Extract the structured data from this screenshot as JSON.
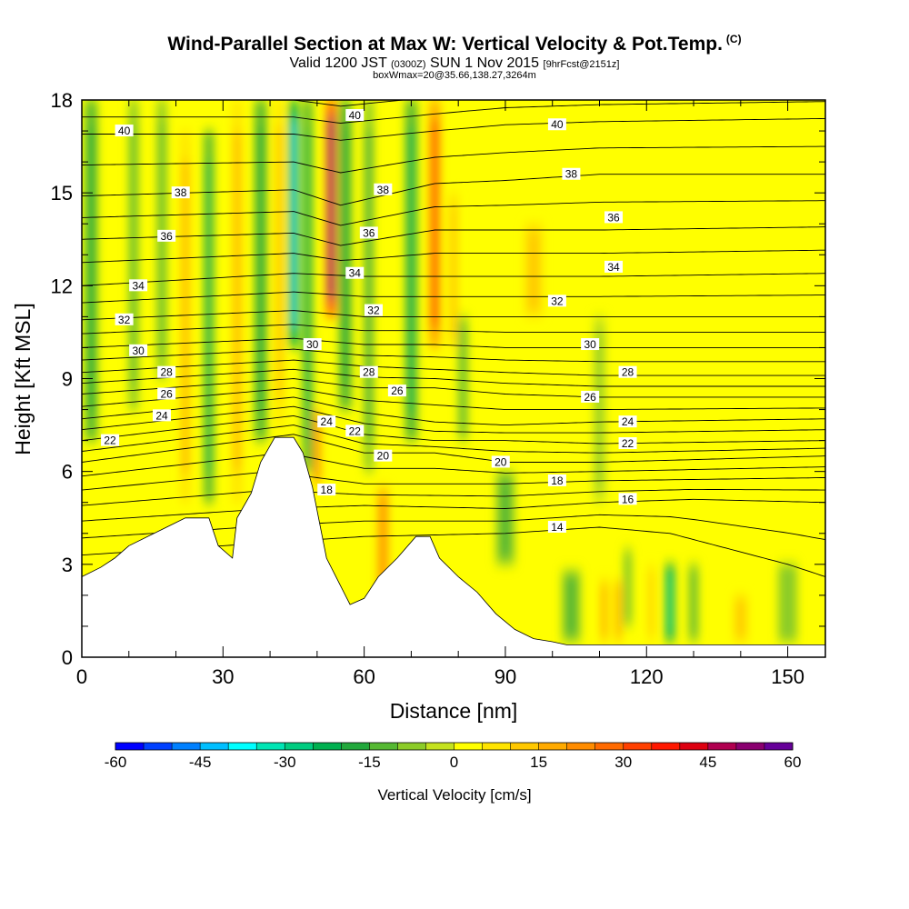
{
  "title": "Wind-Parallel Section at Max W: Vertical Velocity & Pot.Temp.",
  "title_mark": "(C)",
  "subtitle": {
    "valid": "Valid 1200 JST",
    "utc": "(0300Z)",
    "date": "SUN 1 Nov 2015",
    "forecast": "[9hrFcst@2151z]"
  },
  "info": "boxWmax=20@35.66,138.27,3264m",
  "chart_data": {
    "type": "heatmap",
    "xlabel": "Distance [nm]",
    "ylabel": "Height [Kft MSL]",
    "xlim": [
      0,
      158
    ],
    "ylim": [
      0,
      18
    ],
    "x_ticks": [
      0,
      30,
      60,
      90,
      120,
      150
    ],
    "y_ticks": [
      0,
      3,
      6,
      9,
      12,
      15,
      18
    ],
    "colorbar": {
      "label": "Vertical Velocity [cm/s]",
      "range": [
        -60,
        60
      ],
      "ticks": [
        -60,
        -45,
        -30,
        -15,
        0,
        15,
        30,
        45,
        60
      ],
      "colors": [
        "#0000ff",
        "#0040ff",
        "#0080ff",
        "#00bfff",
        "#00ffff",
        "#00e5b4",
        "#00cc80",
        "#00b050",
        "#22a83c",
        "#55b832",
        "#8ccc28",
        "#c4e21e",
        "#ffff00",
        "#ffe400",
        "#ffc800",
        "#ffaa00",
        "#ff8c00",
        "#ff6a00",
        "#ff4000",
        "#ff1800",
        "#dd0010",
        "#b00050",
        "#8a0070",
        "#660099"
      ]
    },
    "terrain_profile": [
      [
        0,
        2.6
      ],
      [
        4,
        2.9
      ],
      [
        7,
        3.2
      ],
      [
        10,
        3.6
      ],
      [
        18,
        4.2
      ],
      [
        22,
        4.5
      ],
      [
        27,
        4.5
      ],
      [
        29,
        3.6
      ],
      [
        32,
        3.2
      ],
      [
        33,
        4.5
      ],
      [
        36,
        5.3
      ],
      [
        38,
        6.3
      ],
      [
        41,
        7.1
      ],
      [
        45,
        7.1
      ],
      [
        47,
        6.6
      ],
      [
        49,
        5.5
      ],
      [
        52,
        3.2
      ],
      [
        57,
        1.7
      ],
      [
        60,
        1.9
      ],
      [
        63,
        2.6
      ],
      [
        67,
        3.2
      ],
      [
        71,
        3.9
      ],
      [
        74,
        3.9
      ],
      [
        76,
        3.2
      ],
      [
        80,
        2.6
      ],
      [
        84,
        2.1
      ],
      [
        88,
        1.4
      ],
      [
        92,
        0.9
      ],
      [
        96,
        0.6
      ],
      [
        100,
        0.5
      ],
      [
        103,
        0.4
      ],
      [
        158,
        0.4
      ]
    ],
    "theta_contours": [
      {
        "value": 14,
        "height": [
          [
            0,
            3.3
          ],
          [
            40,
            3.7
          ],
          [
            60,
            3.9
          ],
          [
            90,
            4.0
          ],
          [
            110,
            4.2
          ],
          [
            125,
            4.0
          ],
          [
            150,
            3.0
          ],
          [
            158,
            2.6
          ]
        ]
      },
      {
        "value": 16,
        "height": [
          [
            0,
            4.4
          ],
          [
            40,
            4.8
          ],
          [
            60,
            4.9
          ],
          [
            90,
            4.8
          ],
          [
            110,
            5.0
          ],
          [
            130,
            5.1
          ],
          [
            158,
            5.0
          ]
        ]
      },
      {
        "value": 18,
        "height": [
          [
            0,
            5.4
          ],
          [
            40,
            6.0
          ],
          [
            60,
            5.6
          ],
          [
            90,
            5.6
          ],
          [
            110,
            5.7
          ],
          [
            158,
            5.8
          ]
        ]
      },
      {
        "value": 20,
        "height": [
          [
            0,
            6.3
          ],
          [
            45,
            7.2
          ],
          [
            60,
            6.6
          ],
          [
            75,
            6.6
          ],
          [
            90,
            6.3
          ],
          [
            110,
            6.3
          ],
          [
            158,
            6.5
          ]
        ]
      },
      {
        "value": 22,
        "height": [
          [
            0,
            7.0
          ],
          [
            45,
            7.8
          ],
          [
            60,
            7.2
          ],
          [
            75,
            7.0
          ],
          [
            90,
            7.0
          ],
          [
            110,
            6.9
          ],
          [
            158,
            7.0
          ]
        ]
      },
      {
        "value": 24,
        "height": [
          [
            0,
            7.7
          ],
          [
            45,
            8.4
          ],
          [
            60,
            7.9
          ],
          [
            75,
            7.6
          ],
          [
            90,
            7.5
          ],
          [
            110,
            7.6
          ],
          [
            158,
            7.7
          ]
        ]
      },
      {
        "value": 26,
        "height": [
          [
            0,
            8.5
          ],
          [
            45,
            9.0
          ],
          [
            60,
            8.7
          ],
          [
            75,
            8.7
          ],
          [
            90,
            8.5
          ],
          [
            110,
            8.4
          ],
          [
            158,
            8.4
          ]
        ]
      },
      {
        "value": 28,
        "height": [
          [
            0,
            9.2
          ],
          [
            45,
            9.6
          ],
          [
            60,
            9.4
          ],
          [
            75,
            9.3
          ],
          [
            90,
            9.2
          ],
          [
            110,
            9.1
          ],
          [
            158,
            9.1
          ]
        ]
      },
      {
        "value": 30,
        "height": [
          [
            0,
            10.0
          ],
          [
            45,
            10.3
          ],
          [
            60,
            10.1
          ],
          [
            75,
            10.1
          ],
          [
            90,
            10.0
          ],
          [
            110,
            10.0
          ],
          [
            158,
            10.0
          ]
        ]
      },
      {
        "value": 32,
        "height": [
          [
            0,
            10.9
          ],
          [
            45,
            11.2
          ],
          [
            60,
            11.0
          ],
          [
            75,
            11.0
          ],
          [
            90,
            11.0
          ],
          [
            110,
            11.0
          ],
          [
            158,
            11.0
          ]
        ]
      },
      {
        "value": 34,
        "height": [
          [
            0,
            12.0
          ],
          [
            45,
            12.4
          ],
          [
            60,
            12.3
          ],
          [
            75,
            12.3
          ],
          [
            90,
            12.3
          ],
          [
            110,
            12.3
          ],
          [
            158,
            12.4
          ]
        ]
      },
      {
        "value": 36,
        "height": [
          [
            0,
            13.5
          ],
          [
            45,
            13.7
          ],
          [
            55,
            13.3
          ],
          [
            75,
            13.8
          ],
          [
            90,
            13.8
          ],
          [
            110,
            13.8
          ],
          [
            158,
            13.9
          ]
        ]
      },
      {
        "value": 38,
        "height": [
          [
            0,
            14.9
          ],
          [
            45,
            15.1
          ],
          [
            55,
            14.6
          ],
          [
            75,
            15.3
          ],
          [
            90,
            15.4
          ],
          [
            110,
            15.6
          ],
          [
            158,
            15.6
          ]
        ]
      },
      {
        "value": 40,
        "height": [
          [
            0,
            16.9
          ],
          [
            45,
            16.9
          ],
          [
            55,
            16.7
          ],
          [
            75,
            17.0
          ],
          [
            90,
            17.2
          ],
          [
            110,
            17.3
          ],
          [
            158,
            17.4
          ]
        ]
      }
    ],
    "theta_labels": [
      {
        "text": "40",
        "x": 9,
        "y": 17.0
      },
      {
        "text": "40",
        "x": 58,
        "y": 17.5
      },
      {
        "text": "40",
        "x": 101,
        "y": 17.2
      },
      {
        "text": "38",
        "x": 21,
        "y": 15.0
      },
      {
        "text": "38",
        "x": 64,
        "y": 15.1
      },
      {
        "text": "38",
        "x": 104,
        "y": 15.6
      },
      {
        "text": "36",
        "x": 18,
        "y": 13.6
      },
      {
        "text": "36",
        "x": 61,
        "y": 13.7
      },
      {
        "text": "36",
        "x": 113,
        "y": 14.2
      },
      {
        "text": "34",
        "x": 12,
        "y": 12.0
      },
      {
        "text": "34",
        "x": 58,
        "y": 12.4
      },
      {
        "text": "34",
        "x": 113,
        "y": 12.6
      },
      {
        "text": "32",
        "x": 9,
        "y": 10.9
      },
      {
        "text": "32",
        "x": 62,
        "y": 11.2
      },
      {
        "text": "32",
        "x": 101,
        "y": 11.5
      },
      {
        "text": "30",
        "x": 12,
        "y": 9.9
      },
      {
        "text": "30",
        "x": 49,
        "y": 10.1
      },
      {
        "text": "30",
        "x": 108,
        "y": 10.1
      },
      {
        "text": "28",
        "x": 18,
        "y": 9.2
      },
      {
        "text": "28",
        "x": 61,
        "y": 9.2
      },
      {
        "text": "28",
        "x": 116,
        "y": 9.2
      },
      {
        "text": "26",
        "x": 18,
        "y": 8.5
      },
      {
        "text": "26",
        "x": 67,
        "y": 8.6
      },
      {
        "text": "26",
        "x": 108,
        "y": 8.4
      },
      {
        "text": "24",
        "x": 17,
        "y": 7.8
      },
      {
        "text": "24",
        "x": 52,
        "y": 7.6
      },
      {
        "text": "24",
        "x": 116,
        "y": 7.6
      },
      {
        "text": "22",
        "x": 6,
        "y": 7.0
      },
      {
        "text": "22",
        "x": 58,
        "y": 7.3
      },
      {
        "text": "22",
        "x": 116,
        "y": 6.9
      },
      {
        "text": "20",
        "x": 64,
        "y": 6.5
      },
      {
        "text": "20",
        "x": 89,
        "y": 6.3
      },
      {
        "text": "18",
        "x": 52,
        "y": 5.4
      },
      {
        "text": "18",
        "x": 101,
        "y": 5.7
      },
      {
        "text": "16",
        "x": 116,
        "y": 5.1
      },
      {
        "text": "14",
        "x": 101,
        "y": 4.2
      }
    ],
    "w_features": [
      {
        "x": 2,
        "y0": 7,
        "y1": 18,
        "w": 2.5,
        "value": -20
      },
      {
        "x": 11,
        "y0": 8,
        "y1": 18,
        "w": 2.0,
        "value": -15
      },
      {
        "x": 17,
        "y0": 9,
        "y1": 18,
        "w": 2.0,
        "value": -12
      },
      {
        "x": 22,
        "y0": 5,
        "y1": 17,
        "w": 2.0,
        "value": 18
      },
      {
        "x": 27,
        "y0": 5,
        "y1": 17,
        "w": 2.0,
        "value": -22
      },
      {
        "x": 33,
        "y0": 5,
        "y1": 18,
        "w": 2.0,
        "value": 18
      },
      {
        "x": 38,
        "y0": 7,
        "y1": 18,
        "w": 2.5,
        "value": -20
      },
      {
        "x": 42,
        "y0": 7.5,
        "y1": 18,
        "w": 1.5,
        "value": 15
      },
      {
        "x": 45,
        "y0": 10,
        "y1": 18,
        "w": 2.0,
        "value": -45
      },
      {
        "x": 48,
        "y0": 6,
        "y1": 18,
        "w": 2.0,
        "value": -25
      },
      {
        "x": 50,
        "y0": 5.5,
        "y1": 8,
        "w": 1.5,
        "value": 25
      },
      {
        "x": 53,
        "y0": 11,
        "y1": 18,
        "w": 2.2,
        "value": 50
      },
      {
        "x": 56,
        "y0": 8,
        "y1": 18,
        "w": 2.5,
        "value": -20
      },
      {
        "x": 61,
        "y0": 6,
        "y1": 18,
        "w": 2.0,
        "value": -18
      },
      {
        "x": 64,
        "y0": 2,
        "y1": 5.5,
        "w": 2.5,
        "value": 22
      },
      {
        "x": 70,
        "y0": 7,
        "y1": 18,
        "w": 2.5,
        "value": -22
      },
      {
        "x": 75,
        "y0": 10,
        "y1": 18,
        "w": 2.2,
        "value": 30
      },
      {
        "x": 81,
        "y0": 7,
        "y1": 11,
        "w": 2.0,
        "value": -15
      },
      {
        "x": 79,
        "y0": 10,
        "y1": 15,
        "w": 2.0,
        "value": 12
      },
      {
        "x": 90,
        "y0": 3,
        "y1": 6,
        "w": 4,
        "value": -12
      },
      {
        "x": 96,
        "y0": 11,
        "y1": 14,
        "w": 4,
        "value": 12
      },
      {
        "x": 104,
        "y0": 0.5,
        "y1": 2.8,
        "w": 4,
        "value": -15
      },
      {
        "x": 110,
        "y0": 5,
        "y1": 11,
        "w": 2.5,
        "value": -8
      },
      {
        "x": 111,
        "y0": 0.5,
        "y1": 2.5,
        "w": 1.2,
        "value": 22
      },
      {
        "x": 114,
        "y0": 0.5,
        "y1": 2.5,
        "w": 1.2,
        "value": 20
      },
      {
        "x": 116,
        "y0": 1,
        "y1": 3.5,
        "w": 1.5,
        "value": -15
      },
      {
        "x": 125,
        "y0": 0.5,
        "y1": 3,
        "w": 2.0,
        "value": -28
      },
      {
        "x": 121,
        "y0": 0.5,
        "y1": 3,
        "w": 1.0,
        "value": 18
      },
      {
        "x": 130,
        "y0": 0.5,
        "y1": 3,
        "w": 2.0,
        "value": -15
      },
      {
        "x": 140,
        "y0": 0.5,
        "y1": 2,
        "w": 3,
        "value": 10
      },
      {
        "x": 150,
        "y0": 0.5,
        "y1": 3,
        "w": 4,
        "value": -10
      }
    ]
  }
}
